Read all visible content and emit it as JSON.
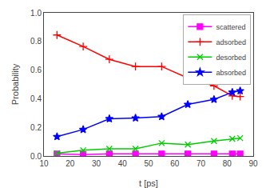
{
  "chart_data": {
    "type": "line",
    "xlabel": "t [ps]",
    "ylabel": "Probability",
    "x": [
      15,
      25,
      35,
      45,
      55,
      65,
      75,
      82,
      85
    ],
    "series": [
      {
        "name": "scattered",
        "color": "#ff00ff",
        "marker": "square",
        "values": [
          0.015,
          0.01,
          0.015,
          0.015,
          0.015,
          0.015,
          0.015,
          0.015,
          0.015
        ]
      },
      {
        "name": "adsorbed",
        "color": "#ff0000",
        "marker": "plus",
        "values": [
          0.845,
          0.765,
          0.675,
          0.625,
          0.625,
          0.545,
          0.49,
          0.42,
          0.415
        ]
      },
      {
        "name": "desorbed",
        "color": "#00cc00",
        "marker": "x",
        "values": [
          0.02,
          0.04,
          0.05,
          0.05,
          0.09,
          0.08,
          0.105,
          0.12,
          0.125
        ]
      },
      {
        "name": "absorbed",
        "color": "#0000ff",
        "marker": "star",
        "values": [
          0.135,
          0.185,
          0.26,
          0.265,
          0.275,
          0.36,
          0.395,
          0.445,
          0.455
        ]
      }
    ],
    "xlim": [
      10,
      90
    ],
    "ylim": [
      0,
      1.0
    ],
    "xticks": [
      10,
      20,
      30,
      40,
      50,
      60,
      70,
      80,
      90
    ],
    "yticks": [
      {
        "value": 0,
        "label": "0.0"
      },
      0.2,
      0.4,
      0.6,
      0.8,
      {
        "value": 1,
        "label": "1.0"
      }
    ],
    "grid": false,
    "legend": "upper right"
  }
}
